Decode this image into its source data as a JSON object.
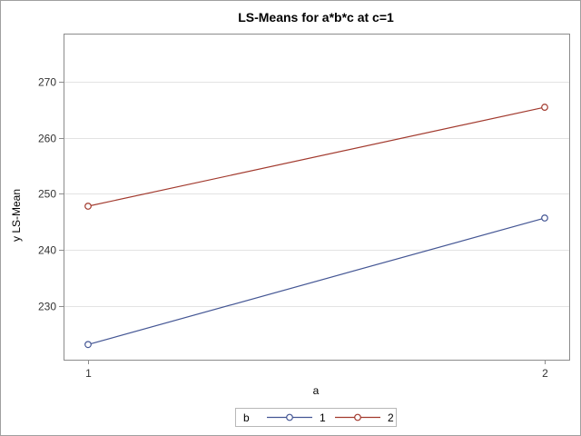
{
  "chart_data": {
    "type": "line",
    "title": "LS-Means for a*b*c at c=1",
    "xlabel": "a",
    "ylabel": "y LS-Mean",
    "categories": [
      "1",
      "2"
    ],
    "y_ticks": [
      230,
      240,
      250,
      260,
      270
    ],
    "ylim": [
      220.5,
      278.5
    ],
    "grid": true,
    "legend": {
      "title": "b",
      "placement": "bottom-center"
    },
    "series": [
      {
        "name": "1",
        "values": [
          223.2,
          245.7
        ],
        "color": "#445694"
      },
      {
        "name": "2",
        "values": [
          247.8,
          265.4
        ],
        "color": "#a23a2e"
      }
    ]
  }
}
